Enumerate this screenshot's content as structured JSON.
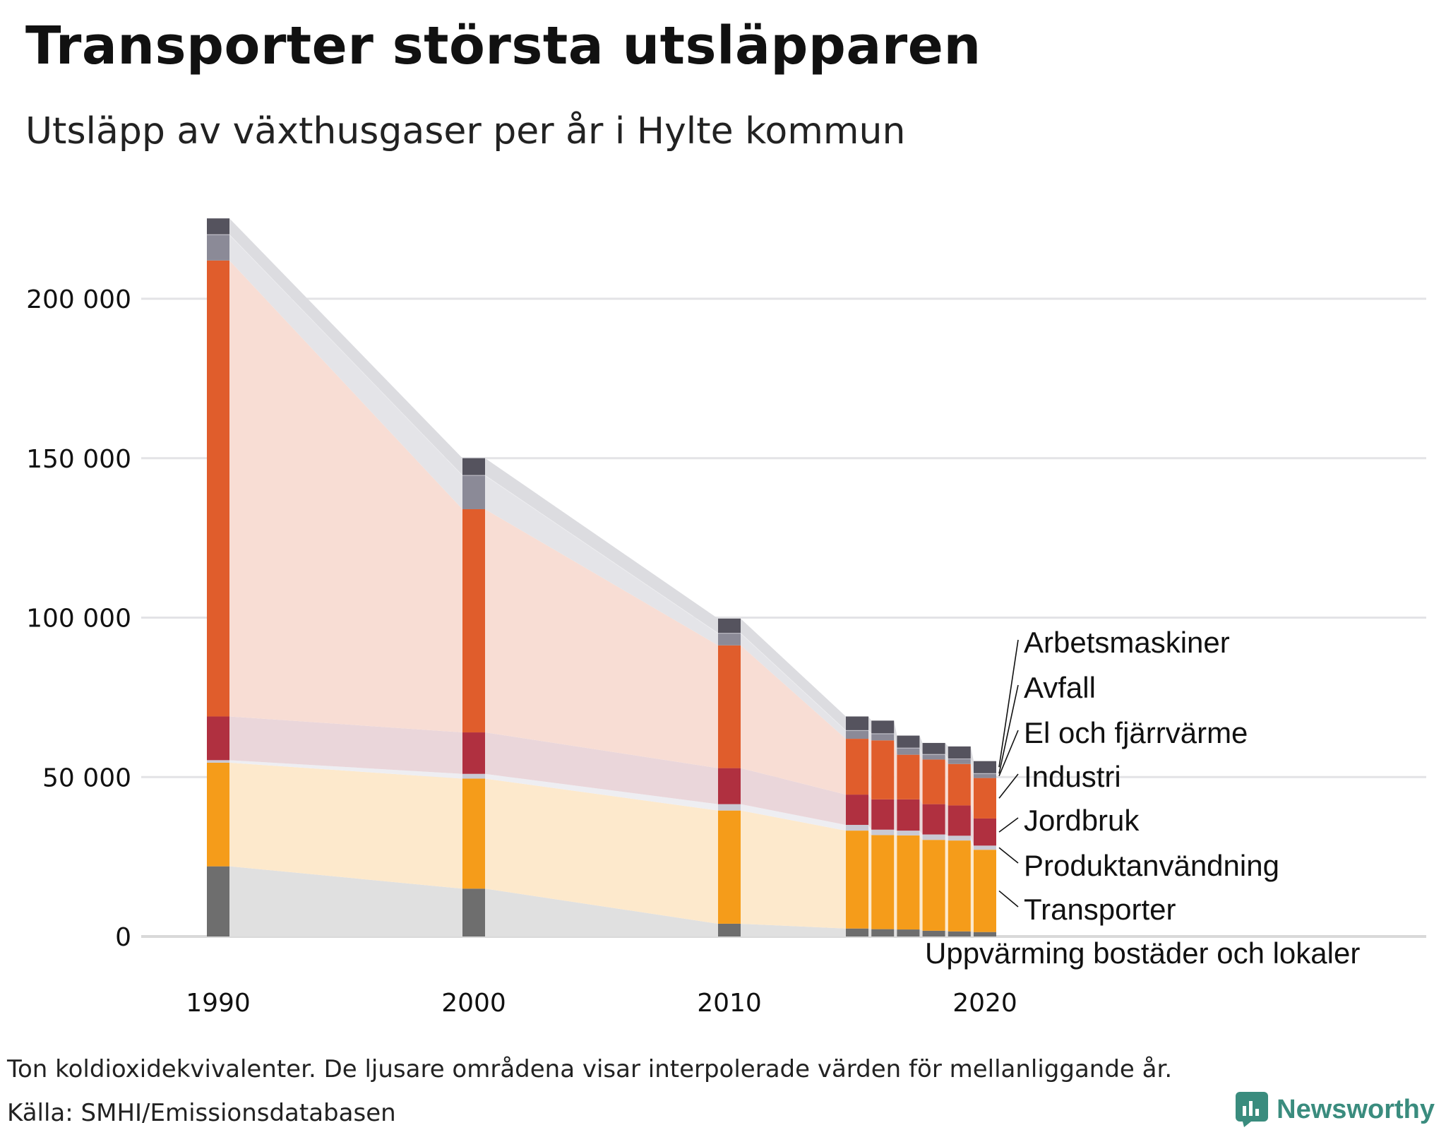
{
  "header": {
    "title": "Transporter största utsläpparen",
    "subtitle": "Utsläpp av växthusgaser per år i Hylte kommun"
  },
  "footer": {
    "note": "Ton koldioxidekvivalenter. De ljusare områdena visar interpolerade värden för mellanliggande år.",
    "source": "Källa: SMHI/Emissionsdatabasen",
    "brand": "Newsworthy",
    "brand_color": "#3a8c7e"
  },
  "chart_data": {
    "type": "bar",
    "stacked": true,
    "title": "Transporter största utsläpparen",
    "subtitle": "Utsläpp av växthusgaser per år i Hylte kommun",
    "xlabel": "",
    "ylabel": "Ton koldioxidekvivalenter",
    "ylim": [
      0,
      225000
    ],
    "xlim": [
      1990,
      2020
    ],
    "grid": true,
    "y_ticks": [
      0,
      50000,
      100000,
      150000,
      200000
    ],
    "y_tick_labels": [
      "0",
      "50 000",
      "100 000",
      "150 000",
      "200 000"
    ],
    "x_ticks": [
      1990,
      2000,
      2010,
      2020
    ],
    "x_tick_labels": [
      "1990",
      "2000",
      "2010",
      "2020"
    ],
    "categories": [
      1990,
      2000,
      2010,
      2015,
      2016,
      2017,
      2018,
      2019,
      2020
    ],
    "series": [
      {
        "name": "Uppvärming bostäder och lokaler",
        "color": "#6e6e6e",
        "values": [
          22000,
          15000,
          4000,
          2500,
          2300,
          2200,
          1800,
          1600,
          1400
        ]
      },
      {
        "name": "Transporter",
        "color": "#f59c1a",
        "values": [
          32500,
          34500,
          35500,
          30700,
          29500,
          29500,
          28500,
          28500,
          25800
        ]
      },
      {
        "name": "Produktanvändning",
        "color": "#c9c9d4",
        "values": [
          800,
          1500,
          2000,
          1800,
          1700,
          1500,
          1700,
          1500,
          1300
        ]
      },
      {
        "name": "Jordbruk",
        "color": "#b03040",
        "values": [
          13700,
          13000,
          11300,
          9500,
          9500,
          9800,
          9500,
          9500,
          8500
        ]
      },
      {
        "name": "Industri",
        "color": "#e05d2c",
        "values": [
          143000,
          70000,
          38500,
          17500,
          18500,
          14000,
          14000,
          13000,
          12700
        ]
      },
      {
        "name": "El och fjärrvärme",
        "color": "#8b8a97",
        "values": [
          8000,
          10500,
          3700,
          2500,
          2000,
          2000,
          1500,
          1500,
          1300
        ]
      },
      {
        "name": "Avfall",
        "color": "#c0bfc9",
        "values": [
          200,
          200,
          200,
          200,
          200,
          200,
          200,
          200,
          200
        ]
      },
      {
        "name": "Arbetsmaskiner",
        "color": "#55535e",
        "values": [
          5000,
          5300,
          4500,
          4300,
          4000,
          3800,
          3500,
          3800,
          3800
        ]
      }
    ],
    "legend": [
      "Arbetsmaskiner",
      "Avfall",
      "El och fjärrvärme",
      "Industri",
      "Jordbruk",
      "Produktanvändning",
      "Transporter",
      "Uppvärming bostäder och lokaler"
    ],
    "legend_position": "right"
  }
}
